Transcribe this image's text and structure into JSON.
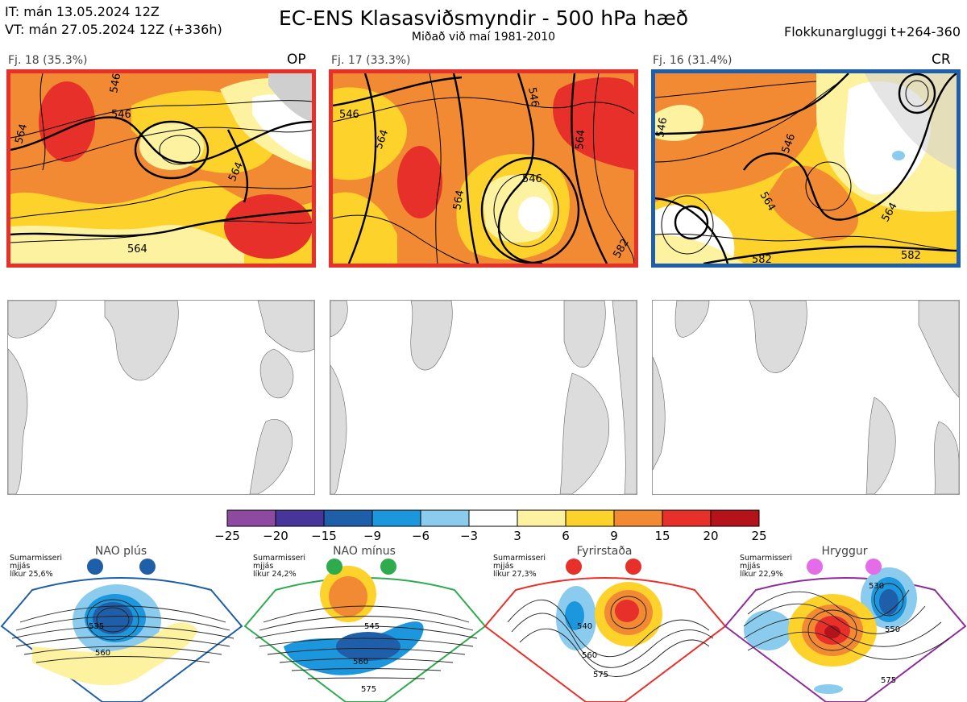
{
  "header": {
    "issue_time": "IT: mán 13.05.2024 12Z",
    "valid_time": "VT: mán 27.05.2024 12Z  (+336h)",
    "title": "EC-ENS Klasasviðsmyndir - 500 hPa hæð",
    "subtitle": "Miðað við maí 1981-2010",
    "window": "Flokkunargluggi t+264-360"
  },
  "clusters": [
    {
      "label": "Fj. 18 (35.3%)",
      "tag": "OP",
      "frame_color": "#e8302a",
      "contour_labels": [
        "564",
        "546",
        "564",
        "564",
        "546"
      ]
    },
    {
      "label": "Fj. 17 (33.3%)",
      "tag": "",
      "frame_color": "#e8302a",
      "contour_labels": [
        "546",
        "564",
        "546",
        "564",
        "564",
        "546",
        "582"
      ]
    },
    {
      "label": "Fj. 16 (31.4%)",
      "tag": "CR",
      "frame_color": "#1f5ea8",
      "contour_labels": [
        "546",
        "546",
        "564",
        "564",
        "582",
        "582"
      ]
    }
  ],
  "colorbar": {
    "ticks": [
      "−25",
      "−20",
      "−15",
      "−9",
      "−6",
      "−3",
      "3",
      "6",
      "9",
      "15",
      "20",
      "25"
    ],
    "colors": [
      "#8e4aa0",
      "#47359a",
      "#1f5ea8",
      "#1c97dd",
      "#8acbee",
      "#ffffff",
      "#fdf2a0",
      "#fdd22a",
      "#f28a33",
      "#e8302a",
      "#b5131c"
    ]
  },
  "regimes": [
    {
      "name": "NAO plús",
      "color": "#1f5ea8",
      "note": [
        "Sumarmisseri",
        "mjjás",
        "líkur 25,6%"
      ],
      "labels": [
        "535",
        "560"
      ]
    },
    {
      "name": "NAO mínus",
      "color": "#2eab4d",
      "note": [
        "Sumarmisseri",
        "mjjás",
        "líkur 24,2%"
      ],
      "labels": [
        "545",
        "560",
        "575"
      ]
    },
    {
      "name": "Fyrirstaða",
      "color": "#e8302a",
      "note": [
        "Sumarmisseri",
        "mjjás",
        "líkur 27,3%"
      ],
      "labels": [
        "540",
        "560",
        "575"
      ]
    },
    {
      "name": "Hryggur",
      "color": "#8e2d9a",
      "note": [
        "Sumarmisseri",
        "mjjás",
        "líkur 22,9%"
      ],
      "labels": [
        "530",
        "550",
        "575"
      ]
    }
  ]
}
